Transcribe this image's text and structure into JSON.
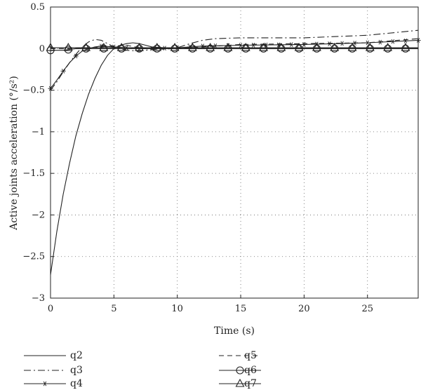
{
  "chart_data": {
    "type": "line",
    "xlabel": "Time (s)",
    "ylabel": "Active joints acceleration (°/s²)",
    "xlim": [
      0,
      29
    ],
    "ylim": [
      -3,
      0.5
    ],
    "x_ticks": [
      "0",
      "5",
      "10",
      "15",
      "20",
      "25"
    ],
    "y_ticks": [
      "0.5",
      "0",
      "−0.5",
      "−1",
      "−1.5",
      "−2",
      "−2.5",
      "−3"
    ],
    "grid": "dotted",
    "legend_position": "bottom",
    "series": [
      {
        "name": "q2",
        "style": "solid",
        "points": [
          [
            0,
            -2.72
          ],
          [
            0.5,
            -2.2
          ],
          [
            1,
            -1.75
          ],
          [
            1.5,
            -1.38
          ],
          [
            2,
            -1.05
          ],
          [
            2.5,
            -0.78
          ],
          [
            3,
            -0.55
          ],
          [
            3.5,
            -0.36
          ],
          [
            4,
            -0.2
          ],
          [
            4.5,
            -0.08
          ],
          [
            5,
            0.0
          ],
          [
            5.5,
            0.04
          ],
          [
            6,
            0.06
          ],
          [
            6.5,
            0.07
          ],
          [
            7,
            0.06
          ],
          [
            7.5,
            0.04
          ],
          [
            8,
            0.02
          ],
          [
            9,
            0.01
          ],
          [
            10,
            0.0
          ],
          [
            15,
            0.0
          ],
          [
            20,
            0.0
          ],
          [
            25,
            0.0
          ],
          [
            29,
            0.0
          ]
        ]
      },
      {
        "name": "q3",
        "style": "dashdot",
        "points": [
          [
            0,
            -0.5
          ],
          [
            0.5,
            -0.4
          ],
          [
            1,
            -0.28
          ],
          [
            1.5,
            -0.17
          ],
          [
            2,
            -0.07
          ],
          [
            2.5,
            0.02
          ],
          [
            3,
            0.08
          ],
          [
            3.5,
            0.11
          ],
          [
            4,
            0.1
          ],
          [
            4.5,
            0.06
          ],
          [
            5,
            0.02
          ],
          [
            6,
            -0.02
          ],
          [
            7,
            -0.03
          ],
          [
            8,
            -0.01
          ],
          [
            9,
            0.0
          ],
          [
            10,
            0.01
          ],
          [
            11,
            0.06
          ],
          [
            12,
            0.1
          ],
          [
            13,
            0.12
          ],
          [
            15,
            0.13
          ],
          [
            20,
            0.13
          ],
          [
            25,
            0.16
          ],
          [
            29,
            0.22
          ]
        ]
      },
      {
        "name": "q4",
        "style": "solid-star",
        "points": [
          [
            0,
            -0.48
          ],
          [
            0.5,
            -0.38
          ],
          [
            1,
            -0.27
          ],
          [
            1.5,
            -0.17
          ],
          [
            2,
            -0.09
          ],
          [
            2.5,
            -0.03
          ],
          [
            3,
            0.0
          ],
          [
            3.5,
            0.02
          ],
          [
            4,
            0.03
          ],
          [
            5,
            0.02
          ],
          [
            6,
            0.01
          ],
          [
            7,
            0.0
          ],
          [
            8,
            0.0
          ],
          [
            10,
            0.01
          ],
          [
            12,
            0.03
          ],
          [
            15,
            0.04
          ],
          [
            20,
            0.05
          ],
          [
            25,
            0.07
          ],
          [
            29,
            0.1
          ]
        ]
      },
      {
        "name": "q5",
        "style": "dashed",
        "points": [
          [
            0,
            0.0
          ],
          [
            2,
            0.0
          ],
          [
            4,
            0.02
          ],
          [
            5,
            0.03
          ],
          [
            6,
            0.04
          ],
          [
            7,
            0.01
          ],
          [
            8,
            -0.01
          ],
          [
            10,
            0.0
          ],
          [
            15,
            0.05
          ],
          [
            20,
            0.06
          ],
          [
            25,
            0.07
          ],
          [
            29,
            0.12
          ]
        ]
      },
      {
        "name": "q6",
        "style": "solid-circle",
        "points": [
          [
            0,
            -0.02
          ],
          [
            1,
            -0.02
          ],
          [
            2,
            0.0
          ],
          [
            3,
            0.0
          ],
          [
            5,
            0.0
          ],
          [
            10,
            0.0
          ],
          [
            15,
            0.0
          ],
          [
            20,
            0.0
          ],
          [
            25,
            0.0
          ],
          [
            29,
            0.0
          ]
        ]
      },
      {
        "name": "q7",
        "style": "solid-triangle",
        "points": [
          [
            0,
            0.01
          ],
          [
            1,
            0.01
          ],
          [
            3,
            0.01
          ],
          [
            5,
            0.01
          ],
          [
            10,
            0.01
          ],
          [
            15,
            0.01
          ],
          [
            20,
            0.01
          ],
          [
            25,
            0.01
          ],
          [
            29,
            0.01
          ]
        ]
      }
    ]
  }
}
